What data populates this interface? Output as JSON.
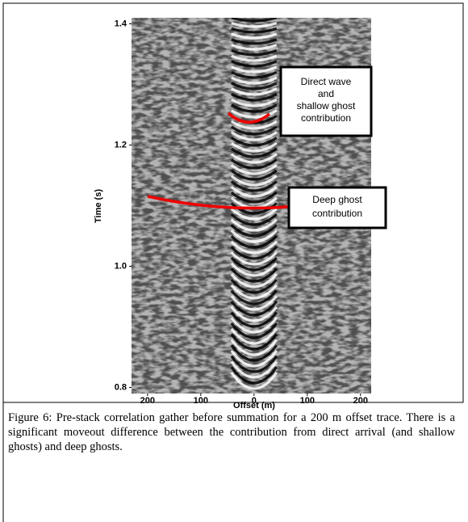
{
  "chart_data": {
    "type": "image",
    "xlabel": "Offset (m)",
    "ylabel": "Time (s)",
    "xlim": [
      -230,
      220
    ],
    "ylim": [
      0.79,
      1.41
    ],
    "xticks": [
      {
        "value": -200,
        "label": "200"
      },
      {
        "value": -100,
        "label": "100"
      },
      0,
      100,
      200
    ],
    "yticks": [
      0.8,
      {
        "value": 1.0,
        "label": "1.0"
      },
      1.2,
      1.4
    ],
    "annotations": [
      {
        "lines": [
          "Direct wave",
          "and",
          "shallow ghost",
          "contribution"
        ]
      },
      {
        "lines": [
          "Deep ghost",
          "contribution"
        ]
      }
    ]
  },
  "caption": "Figure 6: Pre-stack correlation gather before summation for a 200 m offset trace. There is a significant moveout difference between the contribution from direct arrival (and shallow ghosts) and deep ghosts."
}
